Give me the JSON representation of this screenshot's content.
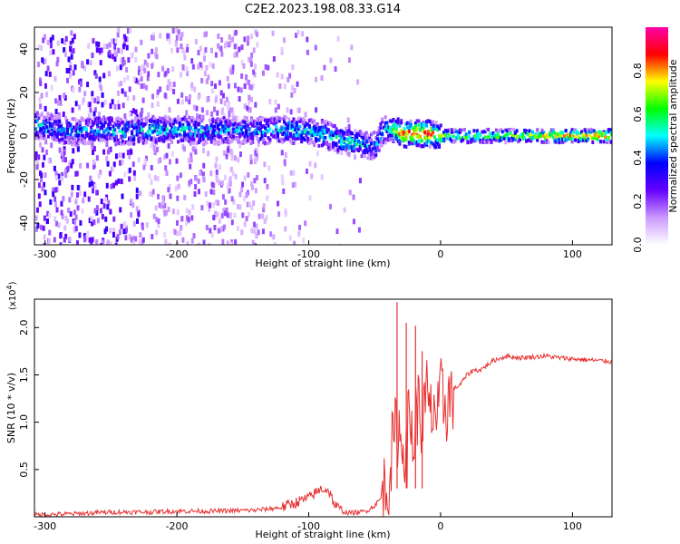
{
  "title": "C2E2.2023.198.08.33.G14",
  "chart_data": [
    {
      "type": "heatmap",
      "xlabel": "Height of straight line (km)",
      "ylabel": "Frequency (Hz)",
      "xlim": [
        -308,
        130
      ],
      "ylim": [
        -50,
        50
      ],
      "x_ticks": [
        -300,
        -200,
        -100,
        0,
        100
      ],
      "y_ticks": [
        -40,
        -20,
        0,
        20,
        40
      ],
      "colorbar": {
        "label": "Normalized spectral amplitude",
        "range": [
          0,
          1
        ],
        "ticks": [
          0.0,
          0.2,
          0.4,
          0.6,
          0.8
        ],
        "colors": [
          "#ffffff",
          "#cc99ff",
          "#6600ff",
          "#0000ff",
          "#00ffff",
          "#00ff00",
          "#ffff00",
          "#ff0000",
          "#ff00aa"
        ]
      },
      "ridge": {
        "x": [
          -308,
          -300,
          -280,
          -260,
          -240,
          -220,
          -200,
          -180,
          -160,
          -140,
          -120,
          -100,
          -90,
          -80,
          -70,
          -60,
          -55,
          -50,
          -45,
          -40,
          -30,
          -20,
          -10,
          0,
          20,
          50,
          80,
          100,
          130
        ],
        "y": [
          5,
          4,
          2,
          3,
          2,
          3,
          3,
          2,
          3,
          2,
          3,
          2,
          1,
          -1,
          -3,
          -4,
          -5,
          -4,
          2,
          4,
          1,
          1,
          1,
          0,
          0,
          0,
          0,
          0,
          0
        ],
        "amplitude": [
          0.5,
          0.45,
          0.45,
          0.45,
          0.5,
          0.5,
          0.5,
          0.5,
          0.45,
          0.45,
          0.55,
          0.5,
          0.5,
          0.5,
          0.55,
          0.5,
          0.4,
          0.5,
          0.45,
          0.5,
          0.85,
          0.9,
          0.9,
          0.7,
          0.65,
          0.65,
          0.75,
          0.8,
          0.85
        ]
      }
    },
    {
      "type": "line",
      "xlabel": "Height of straight line (km)",
      "ylabel": "SNR (10 * v/v)",
      "y_multiplier": "(x10",
      "y_multiplier_exp": "4",
      "y_multiplier_close": ")",
      "xlim": [
        -308,
        130
      ],
      "ylim": [
        0,
        2.3
      ],
      "x_ticks": [
        -300,
        -200,
        -100,
        0,
        100
      ],
      "y_ticks": [
        0.5,
        1.0,
        1.5,
        2.0
      ],
      "y_tick_labels": [
        "0.5",
        "1.0",
        "1.5",
        "2.0"
      ],
      "color": "#e83030",
      "series": [
        {
          "x": [
            -308,
            -280,
            -250,
            -220,
            -200,
            -170,
            -140,
            -120,
            -110,
            -100,
            -95,
            -90,
            -85,
            -80,
            -75,
            -70,
            -60,
            -55,
            -50,
            -45,
            -40,
            -38,
            -35,
            -32,
            -30,
            -28,
            -26,
            -24,
            -22,
            -20,
            -18,
            -15,
            -12,
            -10,
            -8,
            -5,
            -2,
            0,
            5,
            10,
            15,
            20,
            25,
            30,
            40,
            50,
            60,
            70,
            80,
            90,
            100,
            110,
            120,
            130
          ],
          "y": [
            0.02,
            0.03,
            0.05,
            0.05,
            0.06,
            0.06,
            0.07,
            0.1,
            0.15,
            0.2,
            0.25,
            0.3,
            0.28,
            0.12,
            0.06,
            0.04,
            0.05,
            0.07,
            0.12,
            0.2,
            0.35,
            0.6,
            0.8,
            1.0,
            0.7,
            0.9,
            0.6,
            1.1,
            0.9,
            0.8,
            1.2,
            1.0,
            1.1,
            1.3,
            1.0,
            1.2,
            1.0,
            1.25,
            1.2,
            1.35,
            1.4,
            1.5,
            1.55,
            1.55,
            1.65,
            1.7,
            1.68,
            1.69,
            1.7,
            1.68,
            1.67,
            1.66,
            1.65,
            1.64
          ]
        }
      ],
      "spikes": [
        {
          "x": -33,
          "y": 2.27
        },
        {
          "x": -26,
          "y": 2.05
        },
        {
          "x": -19,
          "y": 2.02
        },
        {
          "x": -14,
          "y": 1.75
        }
      ]
    }
  ]
}
